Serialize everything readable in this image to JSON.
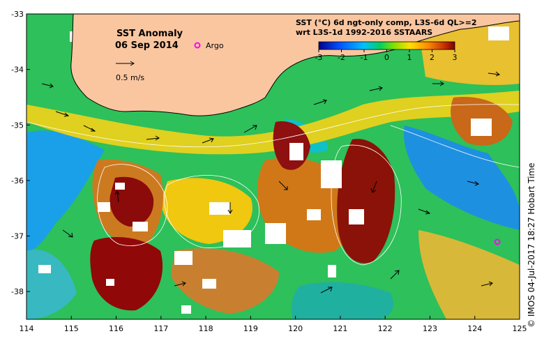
{
  "map": {
    "title": "SST Anomaly",
    "date": "06 Sep 2014",
    "argo_label": "Argo",
    "velocity_scale_label": "0.5 m/s",
    "colorbar_title_line1": "SST (°C) 6d ngt-only comp, L3S-6d QL>=2",
    "colorbar_title_line2": "wrt L3S-1d 1992-2016 SSTAARS",
    "colorbar_ticks": [
      "-3",
      "-2",
      "-1",
      "0",
      "1",
      "2",
      "3"
    ],
    "colorbar_range": [
      -3,
      3
    ],
    "lon_ticks": [
      "114",
      "115",
      "116",
      "117",
      "118",
      "119",
      "120",
      "121",
      "122",
      "123",
      "124",
      "125"
    ],
    "lat_ticks": [
      "-33",
      "-34",
      "-35",
      "-36",
      "-37",
      "-38"
    ],
    "lon_range": [
      114,
      125
    ],
    "lat_range": [
      -38.5,
      -33
    ],
    "credit": "© IMOS 04-Jul-2017 18:27 Hobart Time",
    "colors": {
      "land": "#f9c6a0",
      "argo_marker": "#ff00ff",
      "cloud": "#ffffff",
      "strong_positive": "#8b0000",
      "positive": "#d2691e",
      "neutral": "#32cd32",
      "negative": "#1e90ff"
    }
  }
}
